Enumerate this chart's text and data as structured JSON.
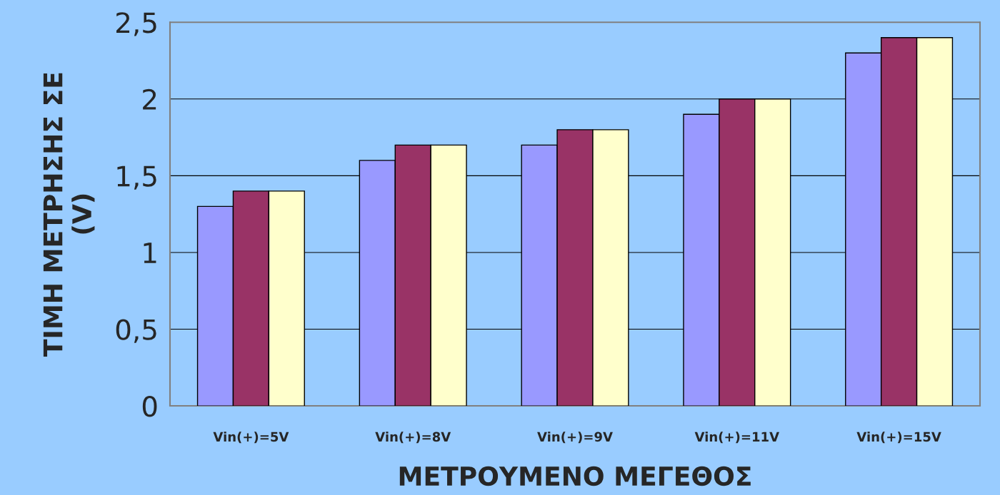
{
  "chart_data": {
    "type": "bar",
    "xlabel": "ΜΕΤΡΟΥΜΕΝΟ ΜΕΓΕΘΟΣ",
    "ylabel": "ΤΙΜΗ ΜΕΤΡΗΣΗΣ ΣΕ\n(V)",
    "categories": [
      "Vin(+)=5V",
      "Vin(+)=8V",
      "Vin(+)=9V",
      "Vin(+)=11V",
      "Vin(+)=15V"
    ],
    "series": [
      {
        "color": "#9999ff",
        "values": [
          1.3,
          1.6,
          1.7,
          1.9,
          2.3
        ]
      },
      {
        "color": "#993366",
        "values": [
          1.4,
          1.7,
          1.8,
          2.0,
          2.4
        ]
      },
      {
        "color": "#ffffcc",
        "values": [
          1.4,
          1.7,
          1.8,
          2.0,
          2.4
        ]
      }
    ],
    "ylim": [
      0,
      2.5
    ],
    "yticks": [
      0,
      {
        "value": 0.5,
        "label": "0,5"
      },
      1,
      {
        "value": 1.5,
        "label": "1,5"
      },
      2,
      {
        "value": 2.5,
        "label": "2,5"
      }
    ],
    "grid": "y",
    "legend": false
  }
}
